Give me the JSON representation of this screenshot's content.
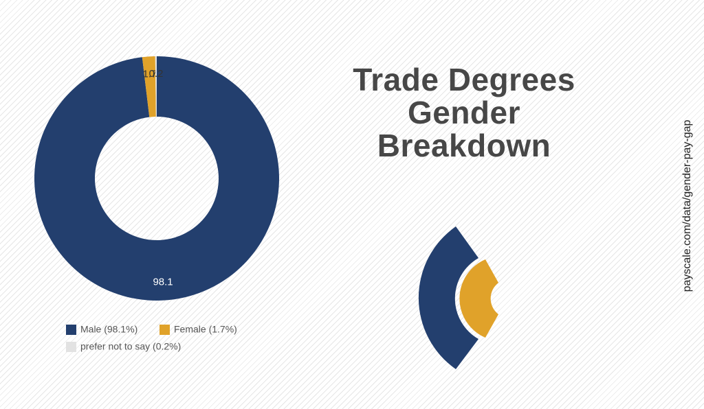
{
  "chart_data": {
    "type": "donut",
    "title": "Trade Degrees Gender Breakdown",
    "categories": [
      "Male (98.1%)",
      "Female (1.7%)",
      "prefer not to say (0.2%)"
    ],
    "values": [
      98.1,
      1.7,
      0.2
    ],
    "colors": [
      "#233f6e",
      "#e0a22a",
      "#e2e2e2"
    ],
    "source": "payscale.com/data/gender-pay-gap"
  }
}
